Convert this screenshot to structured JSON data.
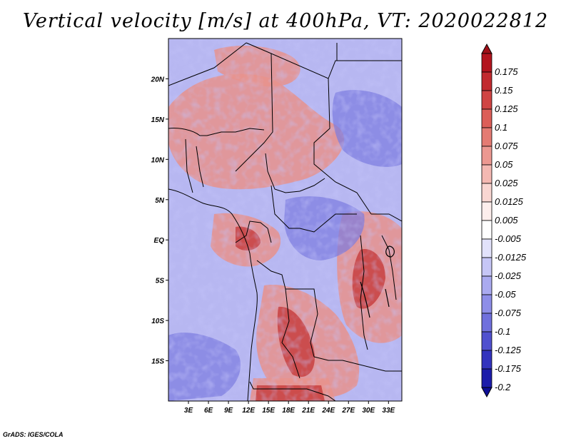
{
  "title": "Vertical velocity [m/s] at 400hPa, VT: 2020022812",
  "credit": "GrADS: IGES/COLA",
  "map": {
    "lon_range": [
      0,
      35
    ],
    "lat_range": [
      -20,
      25
    ],
    "lat_ticks": [
      {
        "value": 20,
        "label": "20N"
      },
      {
        "value": 15,
        "label": "15N"
      },
      {
        "value": 10,
        "label": "10N"
      },
      {
        "value": 5,
        "label": "5N"
      },
      {
        "value": 0,
        "label": "EQ"
      },
      {
        "value": -5,
        "label": "5S"
      },
      {
        "value": -10,
        "label": "10S"
      },
      {
        "value": -15,
        "label": "15S"
      }
    ],
    "lon_ticks": [
      {
        "value": 3,
        "label": "3E"
      },
      {
        "value": 6,
        "label": "6E"
      },
      {
        "value": 9,
        "label": "9E"
      },
      {
        "value": 12,
        "label": "12E"
      },
      {
        "value": 15,
        "label": "15E"
      },
      {
        "value": 18,
        "label": "18E"
      },
      {
        "value": 21,
        "label": "21E"
      },
      {
        "value": 24,
        "label": "24E"
      },
      {
        "value": 27,
        "label": "27E"
      },
      {
        "value": 30,
        "label": "30E"
      },
      {
        "value": 33,
        "label": "33E"
      }
    ]
  },
  "colorbar": {
    "levels": [
      {
        "label": "0.175",
        "color": "#b3141e"
      },
      {
        "label": "0.15",
        "color": "#c22a2f"
      },
      {
        "label": "0.125",
        "color": "#d04443"
      },
      {
        "label": "0.1",
        "color": "#dc5e58"
      },
      {
        "label": "0.075",
        "color": "#e47b73"
      },
      {
        "label": "0.05",
        "color": "#ec9891"
      },
      {
        "label": "0.025",
        "color": "#f4b8b2"
      },
      {
        "label": "0.0125",
        "color": "#f9d6d2"
      },
      {
        "label": "0.005",
        "color": "#fdeeec"
      },
      {
        "label": "-0.005",
        "color": "#ffffff"
      },
      {
        "label": "-0.0125",
        "color": "#e2e2fb"
      },
      {
        "label": "-0.025",
        "color": "#c6c6f6"
      },
      {
        "label": "-0.05",
        "color": "#aaaaf0"
      },
      {
        "label": "-0.075",
        "color": "#8e8ee8"
      },
      {
        "label": "-0.1",
        "color": "#7070dd"
      },
      {
        "label": "-0.125",
        "color": "#5050cf"
      },
      {
        "label": "-0.175",
        "color": "#3333be"
      },
      {
        "label": "-0.2",
        "color": "#1c1caa"
      }
    ],
    "top_color": "#a01018",
    "bottom_color": "#0e0e96"
  },
  "colors": {
    "positive": "#d9524f",
    "negative": "#7c7ce2",
    "background": "#b7b7f1",
    "border": "#000000"
  }
}
